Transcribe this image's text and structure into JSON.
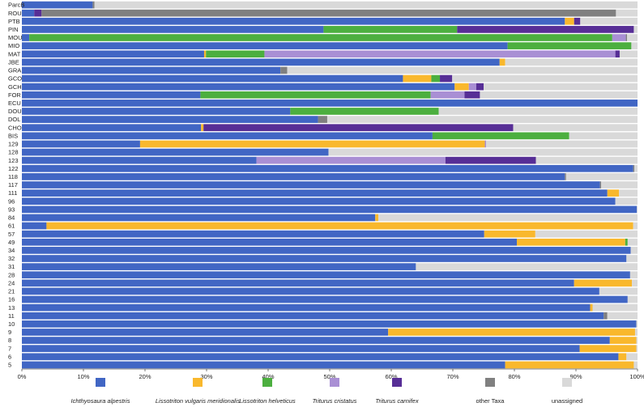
{
  "chart_data": {
    "type": "bar",
    "orientation": "horizontal",
    "stacked": true,
    "xlim": [
      0,
      100
    ],
    "x_ticks": [
      "0%",
      "10%",
      "20%",
      "30%",
      "40%",
      "50%",
      "60%",
      "70%",
      "80%",
      "90%",
      "100%"
    ],
    "legend_position": "bottom",
    "series_names": [
      "Ichthyosaura alpestris",
      "Lissotriton vulgaris meridionalis",
      "Lissotriton helveticus",
      "Triturus cristatus",
      "Triturus carnifex",
      "other Taxa",
      "unassigned"
    ],
    "colors": [
      "#4166c4",
      "#f9b82d",
      "#4caf3f",
      "#a98fd4",
      "#572e96",
      "#808080",
      "#d9d9d9"
    ],
    "categories": [
      "ParcB",
      "ROU",
      "PTB",
      "PIN",
      "MOU",
      "MIO",
      "MAT",
      "JBE",
      "GRA",
      "GCO",
      "GCH",
      "FOR",
      "ECU",
      "DOU",
      "DOL",
      "CHO",
      "BIS",
      "129",
      "128",
      "123",
      "122",
      "118",
      "117",
      "111",
      "96",
      "93",
      "84",
      "61",
      "57",
      "49",
      "34",
      "32",
      "31",
      "28",
      "24",
      "21",
      "16",
      "13",
      "11",
      "10",
      "9",
      "8",
      "7",
      "6",
      "5"
    ],
    "rows": [
      [
        11.5,
        0,
        0,
        0,
        0,
        0.3,
        88.2
      ],
      [
        2,
        0,
        0,
        0,
        1.2,
        93.3,
        3.5
      ],
      [
        88.2,
        1.5,
        0,
        0,
        1,
        0,
        9.3
      ],
      [
        49,
        0,
        21.7,
        0,
        28.7,
        0,
        0.6
      ],
      [
        1.2,
        0,
        94.7,
        2.2,
        0,
        0.2,
        1.7
      ],
      [
        78.9,
        0,
        20.1,
        0,
        0,
        0,
        1
      ],
      [
        29.6,
        0.3,
        9.5,
        57,
        0.7,
        0,
        2.9
      ],
      [
        77.6,
        0.9,
        0,
        0,
        0,
        0,
        21.5
      ],
      [
        42,
        0,
        0,
        0,
        0,
        1.1,
        56.9
      ],
      [
        61.9,
        4.6,
        1.4,
        0,
        2,
        0,
        30.1
      ],
      [
        70.3,
        2.3,
        0,
        1.2,
        1.2,
        0,
        25
      ],
      [
        29,
        0,
        37.4,
        5.5,
        2.5,
        0,
        25.6
      ],
      [
        100,
        0,
        0,
        0,
        0,
        0,
        0
      ],
      [
        43.6,
        0,
        24.1,
        0,
        0,
        0,
        32.3
      ],
      [
        48.1,
        0,
        0,
        0,
        0,
        1.5,
        50.4
      ],
      [
        29.1,
        0.4,
        0,
        0,
        50.3,
        0,
        20.2
      ],
      [
        66.7,
        0,
        22.2,
        0,
        0,
        0,
        11.1
      ],
      [
        19.2,
        56,
        0,
        0.2,
        0,
        0,
        24.6
      ],
      [
        49.8,
        0,
        0,
        0,
        0,
        0,
        50.2
      ],
      [
        38.1,
        0,
        0,
        30.7,
        14.7,
        0,
        16.5
      ],
      [
        99.3,
        0,
        0,
        0,
        0,
        0.2,
        0.5
      ],
      [
        88.2,
        0,
        0,
        0,
        0,
        0.2,
        11.6
      ],
      [
        93.9,
        0,
        0,
        0,
        0,
        0.2,
        5.9
      ],
      [
        95.1,
        1.9,
        0,
        0,
        0,
        0,
        3
      ],
      [
        96.4,
        0,
        0,
        0,
        0,
        0,
        3.6
      ],
      [
        99.9,
        0,
        0,
        0,
        0,
        0,
        0.1
      ],
      [
        57.4,
        0.5,
        0,
        0,
        0,
        0,
        42.1
      ],
      [
        4,
        95.3,
        0,
        0,
        0,
        0,
        0.7
      ],
      [
        75.1,
        8.3,
        0,
        0,
        0,
        0,
        16.6
      ],
      [
        80.4,
        17.6,
        0.4,
        0,
        0,
        0,
        1.6
      ],
      [
        98.9,
        0,
        0,
        0,
        0,
        0,
        1.1
      ],
      [
        98.2,
        0,
        0,
        0,
        0,
        0,
        1.8
      ],
      [
        64,
        0,
        0,
        0,
        0,
        0,
        36
      ],
      [
        98.8,
        0,
        0,
        0,
        0,
        0,
        1.2
      ],
      [
        89.7,
        9.4,
        0,
        0,
        0,
        0,
        0.9
      ],
      [
        93.8,
        0,
        0,
        0,
        0,
        0,
        6.2
      ],
      [
        98.4,
        0,
        0,
        0,
        0,
        0,
        1.6
      ],
      [
        92.3,
        0.4,
        0,
        0,
        0,
        0,
        7.3
      ],
      [
        94.5,
        0,
        0,
        0,
        0,
        0.6,
        4.9
      ],
      [
        99.8,
        0,
        0,
        0,
        0,
        0,
        0.2
      ],
      [
        59.5,
        40.1,
        0,
        0,
        0,
        0,
        0.4
      ],
      [
        95.5,
        4.3,
        0,
        0,
        0,
        0,
        0.2
      ],
      [
        90.6,
        9.2,
        0,
        0,
        0,
        0,
        0.2
      ],
      [
        96.9,
        1.3,
        0,
        0,
        0,
        0,
        1.8
      ],
      [
        78.5,
        20.9,
        0,
        0,
        0,
        0,
        0.6
      ]
    ]
  }
}
